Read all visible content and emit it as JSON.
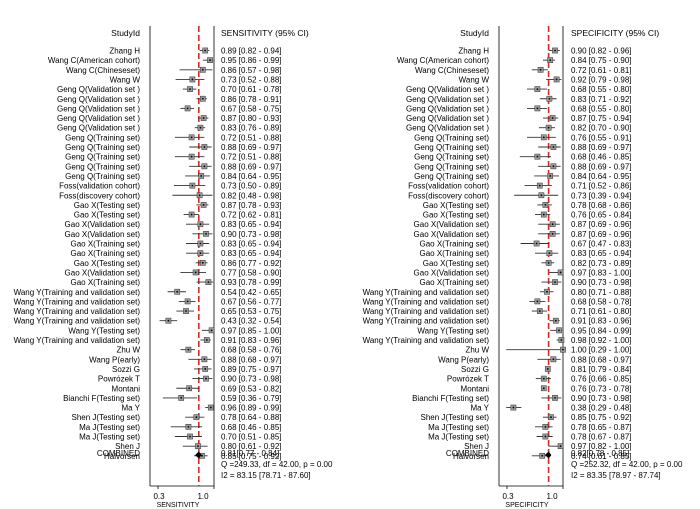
{
  "chart_data": [
    {
      "type": "forest",
      "label_header": "StudyId",
      "value_header": "SENSITIVITY (95% CI)",
      "xlabel": "SENSITIVITY",
      "x_ticks": [
        0.3,
        1.0
      ],
      "x_tick_labels": [
        "0.3",
        "1.0"
      ],
      "xlim": [
        0.2,
        1.0
      ],
      "combined_line": 0.81,
      "rows": [
        {
          "study": "Zhang H",
          "est": 0.89,
          "lo": 0.82,
          "hi": 0.94,
          "text": "0.89 [0.82 - 0.94]"
        },
        {
          "study": "Wang C(American cohort)",
          "est": 0.95,
          "lo": 0.86,
          "hi": 0.99,
          "text": "0.95 [0.86 - 0.99]"
        },
        {
          "study": "Wang C(Chineseset)",
          "est": 0.86,
          "lo": 0.57,
          "hi": 0.98,
          "text": "0.86 [0.57 - 0.98]"
        },
        {
          "study": "Wang W",
          "est": 0.73,
          "lo": 0.52,
          "hi": 0.88,
          "text": "0.73 [0.52 - 0.88]"
        },
        {
          "study": "Geng Q(Validation set )",
          "est": 0.7,
          "lo": 0.61,
          "hi": 0.78,
          "text": "0.70 [0.61 - 0.78]"
        },
        {
          "study": "Geng Q(Validation set )",
          "est": 0.86,
          "lo": 0.78,
          "hi": 0.91,
          "text": "0.86 [0.78 - 0.91]"
        },
        {
          "study": "Geng Q(Validation set )",
          "est": 0.67,
          "lo": 0.58,
          "hi": 0.75,
          "text": "0.67 [0.58 - 0.75]"
        },
        {
          "study": "Geng Q(Validation set )",
          "est": 0.87,
          "lo": 0.8,
          "hi": 0.93,
          "text": "0.87 [0.80 - 0.93]"
        },
        {
          "study": "Geng Q(Validation set )",
          "est": 0.83,
          "lo": 0.76,
          "hi": 0.89,
          "text": "0.83 [0.76 - 0.89]"
        },
        {
          "study": "Geng Q(Training set)",
          "est": 0.72,
          "lo": 0.51,
          "hi": 0.88,
          "text": "0.72 [0.51 - 0.88]"
        },
        {
          "study": "Geng Q(Training set)",
          "est": 0.88,
          "lo": 0.69,
          "hi": 0.97,
          "text": "0.88 [0.69 - 0.97]"
        },
        {
          "study": "Geng Q(Training set)",
          "est": 0.72,
          "lo": 0.51,
          "hi": 0.88,
          "text": "0.72 [0.51 - 0.88]"
        },
        {
          "study": "Geng Q(Training set)",
          "est": 0.88,
          "lo": 0.69,
          "hi": 0.97,
          "text": "0.88 [0.69 - 0.97]"
        },
        {
          "study": "Geng Q(Training set)",
          "est": 0.84,
          "lo": 0.64,
          "hi": 0.95,
          "text": "0.84 [0.64 - 0.95]"
        },
        {
          "study": "Foss(validation cohort)",
          "est": 0.73,
          "lo": 0.5,
          "hi": 0.89,
          "text": "0.73 [0.50 - 0.89]"
        },
        {
          "study": "Foss(discovery cohort)",
          "est": 0.82,
          "lo": 0.48,
          "hi": 0.98,
          "text": "0.82 [0.48 - 0.98]"
        },
        {
          "study": "Gao X(Testing set)",
          "est": 0.87,
          "lo": 0.78,
          "hi": 0.93,
          "text": "0.87 [0.78 - 0.93]"
        },
        {
          "study": "Gao X(Testing set)",
          "est": 0.72,
          "lo": 0.62,
          "hi": 0.81,
          "text": "0.72 [0.62 - 0.81]"
        },
        {
          "study": "Gao X(Validation set)",
          "est": 0.83,
          "lo": 0.65,
          "hi": 0.94,
          "text": "0.83 [0.65 - 0.94]"
        },
        {
          "study": "Gao X(Validation set)",
          "est": 0.9,
          "lo": 0.73,
          "hi": 0.98,
          "text": "0.90 [0.73 - 0.98]"
        },
        {
          "study": "Gao X(Training set)",
          "est": 0.83,
          "lo": 0.65,
          "hi": 0.94,
          "text": "0.83 [0.65 - 0.94]"
        },
        {
          "study": "Gao X(Training set)",
          "est": 0.83,
          "lo": 0.65,
          "hi": 0.94,
          "text": "0.83 [0.65 - 0.94]"
        },
        {
          "study": "Gao X(Testing set)",
          "est": 0.86,
          "lo": 0.77,
          "hi": 0.92,
          "text": "0.86 [0.77 - 0.92]"
        },
        {
          "study": "Gao X(Validation set)",
          "est": 0.77,
          "lo": 0.58,
          "hi": 0.9,
          "text": "0.77 [0.58 - 0.90]"
        },
        {
          "study": "Gao X(Training set)",
          "est": 0.93,
          "lo": 0.78,
          "hi": 0.99,
          "text": "0.93 [0.78 - 0.99]"
        },
        {
          "study": "Wang Y(Training and validation set)",
          "est": 0.54,
          "lo": 0.42,
          "hi": 0.65,
          "text": "0.54 [0.42 - 0.65]"
        },
        {
          "study": "Wang Y(Training and validation set)",
          "est": 0.67,
          "lo": 0.56,
          "hi": 0.77,
          "text": "0.67 [0.56 - 0.77]"
        },
        {
          "study": "Wang Y(Training and validation set)",
          "est": 0.65,
          "lo": 0.53,
          "hi": 0.75,
          "text": "0.65 [0.53 - 0.75]"
        },
        {
          "study": "Wang Y(Training and validation set)",
          "est": 0.43,
          "lo": 0.32,
          "hi": 0.54,
          "text": "0.43 [0.32 - 0.54]"
        },
        {
          "study": "Wang Y(Testing set)",
          "est": 0.97,
          "lo": 0.85,
          "hi": 1.0,
          "text": "0.97 [0.85 - 1.00]"
        },
        {
          "study": "Wang Y(Training and validation set)",
          "est": 0.91,
          "lo": 0.83,
          "hi": 0.96,
          "text": "0.91 [0.83 - 0.96]"
        },
        {
          "study": "Zhu W",
          "est": 0.68,
          "lo": 0.58,
          "hi": 0.76,
          "text": "0.68 [0.58 - 0.76]"
        },
        {
          "study": "Wang P(early)",
          "est": 0.88,
          "lo": 0.68,
          "hi": 0.97,
          "text": "0.88 [0.68 - 0.97]"
        },
        {
          "study": "Sozzi G",
          "est": 0.89,
          "lo": 0.75,
          "hi": 0.97,
          "text": "0.89 [0.75 - 0.97]"
        },
        {
          "study": "Powrózek T",
          "est": 0.9,
          "lo": 0.73,
          "hi": 0.98,
          "text": "0.90 [0.73 - 0.98]"
        },
        {
          "study": "Montani",
          "est": 0.69,
          "lo": 0.53,
          "hi": 0.82,
          "text": "0.69 [0.53 - 0.82]"
        },
        {
          "study": "Bianchi F(Testing set)",
          "est": 0.59,
          "lo": 0.36,
          "hi": 0.79,
          "text": "0.59 [0.36 - 0.79]"
        },
        {
          "study": "Ma Y",
          "est": 0.96,
          "lo": 0.89,
          "hi": 0.99,
          "text": "0.96 [0.89 - 0.99]"
        },
        {
          "study": "Shen J(Testing set)",
          "est": 0.78,
          "lo": 0.64,
          "hi": 0.88,
          "text": "0.78 [0.64 - 0.88]"
        },
        {
          "study": "Ma J(Testing set)",
          "est": 0.68,
          "lo": 0.46,
          "hi": 0.85,
          "text": "0.68 [0.46 - 0.85]"
        },
        {
          "study": "Ma J(Testing set)",
          "est": 0.7,
          "lo": 0.51,
          "hi": 0.85,
          "text": "0.70 [0.51 - 0.85]"
        },
        {
          "study": "Shen J",
          "est": 0.8,
          "lo": 0.61,
          "hi": 0.92,
          "text": "0.80 [0.61 - 0.92]"
        },
        {
          "study": "Halvorsen",
          "est": 0.85,
          "lo": 0.75,
          "hi": 0.92,
          "text": "0.85 [0.75 - 0.92]"
        }
      ],
      "combined": {
        "label": "COMBINED",
        "est": 0.81,
        "lo": 0.77,
        "hi": 0.84,
        "text": "0.81[0.77 - 0.84]"
      },
      "stats": [
        "Q =249.33, df = 42.00, p =  0.00",
        "I2 = 83.15 [78.71 - 87.60]"
      ]
    },
    {
      "type": "forest",
      "label_header": "StudyId",
      "value_header": "SPECIFICITY (95% CI)",
      "xlabel": "SPECIFICITY",
      "x_ticks": [
        0.3,
        1.0
      ],
      "x_tick_labels": [
        "0.3",
        "1.0"
      ],
      "xlim": [
        0.2,
        1.0
      ],
      "combined_line": 0.82,
      "rows": [
        {
          "study": "Zhang H",
          "est": 0.9,
          "lo": 0.82,
          "hi": 0.96,
          "text": "0.90 [0.82 - 0.96]"
        },
        {
          "study": "Wang C(American cohort)",
          "est": 0.84,
          "lo": 0.75,
          "hi": 0.9,
          "text": "0.84 [0.75 - 0.90]"
        },
        {
          "study": "Wang C(Chineseset)",
          "est": 0.72,
          "lo": 0.61,
          "hi": 0.81,
          "text": "0.72 [0.61 - 0.81]"
        },
        {
          "study": "Wang W",
          "est": 0.92,
          "lo": 0.79,
          "hi": 0.98,
          "text": "0.92 [0.79 - 0.98]"
        },
        {
          "study": "Geng Q(Validation set )",
          "est": 0.68,
          "lo": 0.55,
          "hi": 0.8,
          "text": "0.68 [0.55 - 0.80]"
        },
        {
          "study": "Geng Q(Validation set )",
          "est": 0.83,
          "lo": 0.71,
          "hi": 0.92,
          "text": "0.83 [0.71 - 0.92]"
        },
        {
          "study": "Geng Q(Validation set )",
          "est": 0.68,
          "lo": 0.55,
          "hi": 0.8,
          "text": "0.68 [0.55 - 0.80]"
        },
        {
          "study": "Geng Q(Validation set )",
          "est": 0.87,
          "lo": 0.75,
          "hi": 0.94,
          "text": "0.87 [0.75 - 0.94]"
        },
        {
          "study": "Geng Q(Validation set )",
          "est": 0.82,
          "lo": 0.7,
          "hi": 0.9,
          "text": "0.82 [0.70 - 0.90]"
        },
        {
          "study": "Geng Q(Training set)",
          "est": 0.76,
          "lo": 0.55,
          "hi": 0.91,
          "text": "0.76 [0.55 - 0.91]"
        },
        {
          "study": "Geng Q(Training set)",
          "est": 0.88,
          "lo": 0.69,
          "hi": 0.97,
          "text": "0.88 [0.69 - 0.97]"
        },
        {
          "study": "Geng Q(Training set)",
          "est": 0.68,
          "lo": 0.46,
          "hi": 0.85,
          "text": "0.68 [0.46 - 0.85]"
        },
        {
          "study": "Geng Q(Training set)",
          "est": 0.88,
          "lo": 0.69,
          "hi": 0.97,
          "text": "0.88 [0.69 - 0.97]"
        },
        {
          "study": "Geng Q(Training set)",
          "est": 0.84,
          "lo": 0.64,
          "hi": 0.95,
          "text": "0.84 [0.64 - 0.95]"
        },
        {
          "study": "Foss(validation cohort)",
          "est": 0.71,
          "lo": 0.52,
          "hi": 0.86,
          "text": "0.71 [0.52 - 0.86]"
        },
        {
          "study": "Foss(discovery cohort)",
          "est": 0.73,
          "lo": 0.39,
          "hi": 0.94,
          "text": "0.73 [0.39 - 0.94]"
        },
        {
          "study": "Gao X(Testing set)",
          "est": 0.78,
          "lo": 0.68,
          "hi": 0.86,
          "text": "0.78 [0.68 - 0.86]"
        },
        {
          "study": "Gao X(Testing set)",
          "est": 0.76,
          "lo": 0.65,
          "hi": 0.84,
          "text": "0.76 [0.65 - 0.84]"
        },
        {
          "study": "Gao X(Validation set)",
          "est": 0.87,
          "lo": 0.69,
          "hi": 0.96,
          "text": "0.87 [0.69 - 0.96]"
        },
        {
          "study": "Gao X(Validation set)",
          "est": 0.87,
          "lo": 0.69,
          "hi": 0.96,
          "text": "0.87 [0.69 - 0.96]"
        },
        {
          "study": "Gao X(Training set)",
          "est": 0.67,
          "lo": 0.47,
          "hi": 0.83,
          "text": "0.67 [0.47 - 0.83]"
        },
        {
          "study": "Gao X(Training set)",
          "est": 0.83,
          "lo": 0.65,
          "hi": 0.94,
          "text": "0.83 [0.65 - 0.94]"
        },
        {
          "study": "Gao X(Testing set)",
          "est": 0.82,
          "lo": 0.73,
          "hi": 0.89,
          "text": "0.82 [0.73 - 0.89]"
        },
        {
          "study": "Gao X(Validation set)",
          "est": 0.97,
          "lo": 0.83,
          "hi": 1.0,
          "text": "0.97 [0.83 - 1.00]"
        },
        {
          "study": "Gao X(Training set)",
          "est": 0.9,
          "lo": 0.73,
          "hi": 0.98,
          "text": "0.90 [0.73 - 0.98]"
        },
        {
          "study": "Wang Y(Training and validation set)",
          "est": 0.8,
          "lo": 0.71,
          "hi": 0.88,
          "text": "0.80 [0.71 - 0.88]"
        },
        {
          "study": "Wang Y(Training and validation set)",
          "est": 0.68,
          "lo": 0.58,
          "hi": 0.78,
          "text": "0.68 [0.58 - 0.78]"
        },
        {
          "study": "Wang Y(Training and validation set)",
          "est": 0.71,
          "lo": 0.61,
          "hi": 0.8,
          "text": "0.71 [0.61 - 0.80]"
        },
        {
          "study": "Wang Y(Training and validation set)",
          "est": 0.91,
          "lo": 0.83,
          "hi": 0.96,
          "text": "0.91 [0.83 - 0.96]"
        },
        {
          "study": "Wang Y(Testing set)",
          "est": 0.95,
          "lo": 0.84,
          "hi": 0.99,
          "text": "0.95 [0.84 - 0.99]"
        },
        {
          "study": "Wang Y(Training and validation set)",
          "est": 0.98,
          "lo": 0.92,
          "hi": 1.0,
          "text": "0.98 [0.92 - 1.00]"
        },
        {
          "study": "Zhu W",
          "est": 1.0,
          "lo": 0.29,
          "hi": 1.0,
          "text": "1.00 [0.29 - 1.00]"
        },
        {
          "study": "Wang P(early)",
          "est": 0.88,
          "lo": 0.68,
          "hi": 0.97,
          "text": "0.88 [0.68 - 0.97]"
        },
        {
          "study": "Sozzi G",
          "est": 0.81,
          "lo": 0.79,
          "hi": 0.84,
          "text": "0.81 [0.79 - 0.84]"
        },
        {
          "study": "Powrózek T",
          "est": 0.76,
          "lo": 0.66,
          "hi": 0.85,
          "text": "0.76 [0.66 - 0.85]"
        },
        {
          "study": "Montani",
          "est": 0.76,
          "lo": 0.73,
          "hi": 0.78,
          "text": "0.76 [0.73 - 0.78]"
        },
        {
          "study": "Bianchi F(Testing set)",
          "est": 0.9,
          "lo": 0.73,
          "hi": 0.98,
          "text": "0.90 [0.73 - 0.98]"
        },
        {
          "study": "Ma Y",
          "est": 0.38,
          "lo": 0.29,
          "hi": 0.48,
          "text": "0.38 [0.29 - 0.48]"
        },
        {
          "study": "Shen J(Testing set)",
          "est": 0.85,
          "lo": 0.75,
          "hi": 0.92,
          "text": "0.85 [0.75 - 0.92]"
        },
        {
          "study": "Ma J(Testing set)",
          "est": 0.78,
          "lo": 0.65,
          "hi": 0.87,
          "text": "0.78 [0.65 - 0.87]"
        },
        {
          "study": "Ma J(Testing set)",
          "est": 0.78,
          "lo": 0.67,
          "hi": 0.87,
          "text": "0.78 [0.67 - 0.87]"
        },
        {
          "study": "Shen J",
          "est": 0.97,
          "lo": 0.82,
          "hi": 1.0,
          "text": "0.97 [0.82 - 1.00]"
        },
        {
          "study": "Halvorsen",
          "est": 0.74,
          "lo": 0.61,
          "hi": 0.85,
          "text": "0.74 [0.61 - 0.85]"
        }
      ],
      "combined": {
        "label": "COMBINED",
        "est": 0.82,
        "lo": 0.78,
        "hi": 0.85,
        "text": "0.82[0.78 - 0.85]"
      },
      "stats": [
        "Q =252.32, df = 42.00, p =  0.00",
        "I2 = 83.35 [78.97 - 87.74]"
      ]
    }
  ]
}
